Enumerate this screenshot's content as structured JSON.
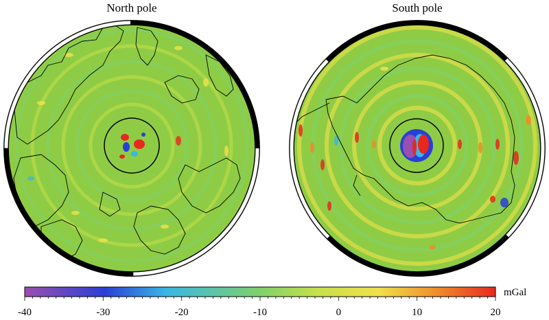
{
  "panels": [
    {
      "id": "north",
      "title": "North pole"
    },
    {
      "id": "south",
      "title": "South pole"
    }
  ],
  "colorbar": {
    "unit": "mGal",
    "min": -40,
    "max": 20,
    "tick_labels": [
      "-40",
      "-30",
      "-20",
      "-10",
      "0",
      "10",
      "20"
    ],
    "tick_values": [
      -40,
      -30,
      -20,
      -10,
      0,
      10,
      20
    ],
    "colors": [
      "#9b4fb0",
      "#2a3fd6",
      "#39b7e6",
      "#7fd16a",
      "#c6e04a",
      "#f0e14a",
      "#f08a2a",
      "#e8281e"
    ]
  },
  "colors": {
    "background_field": "#8fcc45",
    "land_outline": "#000000",
    "positive_anomaly": "#f2e24a",
    "strong_positive": "#e8281e",
    "negative_anomaly": "#39b7e6",
    "strong_negative": "#2a3fd6",
    "frame": "#000000"
  }
}
